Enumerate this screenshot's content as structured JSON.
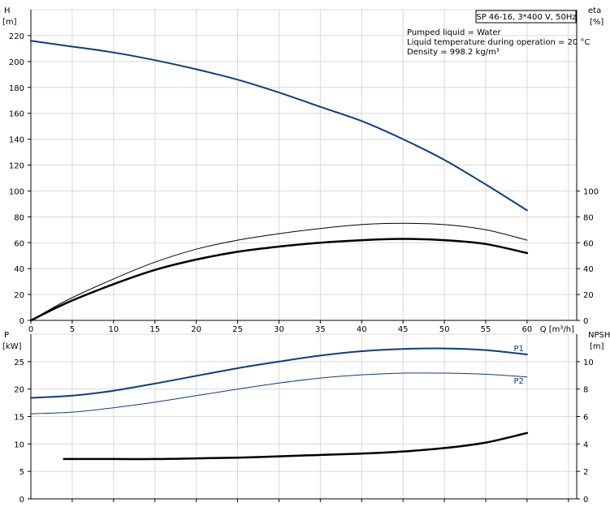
{
  "title_box": "SP 46-16, 3*400 V, 50Hz",
  "info_lines": [
    "Pumped liquid = Water",
    "Liquid temperature during operation = 20 °C",
    "Density = 998.2 kg/m³"
  ],
  "colors": {
    "blue": "#0b3c87",
    "black": "#000000",
    "grid": "#d9d9d9"
  },
  "chart_data": [
    {
      "type": "line",
      "panel": "top",
      "xlabel": "Q [m³/h]",
      "ylabel": "H [m]",
      "ylabel_right": "eta [%]",
      "xlim": [
        0,
        66
      ],
      "ylim": [
        0,
        240
      ],
      "ylim_right": [
        0,
        240
      ],
      "x_ticks": [
        "0",
        "5",
        "10",
        "15",
        "20",
        "25",
        "30",
        "35",
        "40",
        "45",
        "50",
        "55",
        "60"
      ],
      "y_ticks": [
        "0",
        "20",
        "40",
        "60",
        "80",
        "100",
        "120",
        "140",
        "160",
        "180",
        "200",
        "220"
      ],
      "y_ticks_right": [
        "0",
        "20",
        "40",
        "60",
        "80",
        "100"
      ],
      "grid": true,
      "series": [
        {
          "color": "#0b3c87",
          "width": 2,
          "axis": "left",
          "x": [
            0,
            4.5,
            10,
            15,
            20,
            25,
            30,
            35,
            40,
            45,
            50,
            55,
            60
          ],
          "y": [
            216,
            212,
            207,
            201,
            194,
            186,
            176,
            165,
            154,
            140,
            124,
            105,
            85
          ]
        },
        {
          "color": "#000000",
          "width": 1,
          "axis": "right",
          "x": [
            0,
            4.5,
            10,
            15,
            20,
            25,
            30,
            35,
            40,
            45,
            50,
            55,
            60
          ],
          "y": [
            0,
            16,
            32,
            45,
            55,
            62,
            67,
            71,
            74,
            75,
            74,
            70,
            62
          ]
        },
        {
          "color": "#000000",
          "width": 2.5,
          "axis": "right",
          "x": [
            0,
            4.5,
            10,
            15,
            20,
            25,
            30,
            35,
            40,
            45,
            50,
            55,
            60
          ],
          "y": [
            0,
            14,
            28,
            39,
            47,
            53,
            57,
            60,
            62,
            63,
            62,
            59,
            52
          ]
        }
      ]
    },
    {
      "type": "line",
      "panel": "bottom",
      "xlabel": "",
      "ylabel": "P [kW]",
      "ylabel_right": "NPSH [m]",
      "xlim": [
        0,
        66
      ],
      "ylim": [
        0,
        30
      ],
      "ylim_right": [
        0,
        12
      ],
      "y_ticks": [
        "0",
        "5",
        "10",
        "15",
        "20",
        "25"
      ],
      "y_ticks_right": [
        "0",
        "2",
        "4",
        "6",
        "8",
        "10"
      ],
      "grid": true,
      "series": [
        {
          "name": "P1",
          "color": "#0b3c87",
          "width": 2,
          "axis": "left",
          "x": [
            0,
            5,
            10,
            15,
            20,
            25,
            30,
            35,
            40,
            45,
            50,
            55,
            60
          ],
          "y": [
            18.4,
            18.8,
            19.7,
            21.0,
            22.4,
            23.8,
            25.0,
            26.1,
            26.9,
            27.3,
            27.4,
            27.1,
            26.3
          ]
        },
        {
          "name": "P2",
          "color": "#0b3c87",
          "width": 1,
          "axis": "left",
          "x": [
            0,
            5,
            10,
            15,
            20,
            25,
            30,
            35,
            40,
            45,
            50,
            55,
            60
          ],
          "y": [
            15.5,
            15.8,
            16.6,
            17.6,
            18.8,
            20.0,
            21.1,
            22.0,
            22.6,
            22.9,
            22.9,
            22.7,
            22.2
          ]
        },
        {
          "color": "#000000",
          "width": 2.5,
          "axis": "right",
          "x": [
            4,
            10,
            15,
            20,
            25,
            30,
            35,
            40,
            45,
            50,
            55,
            60
          ],
          "y": [
            2.9,
            2.9,
            2.9,
            2.95,
            3.0,
            3.1,
            3.2,
            3.3,
            3.45,
            3.7,
            4.1,
            4.8
          ]
        }
      ]
    }
  ]
}
